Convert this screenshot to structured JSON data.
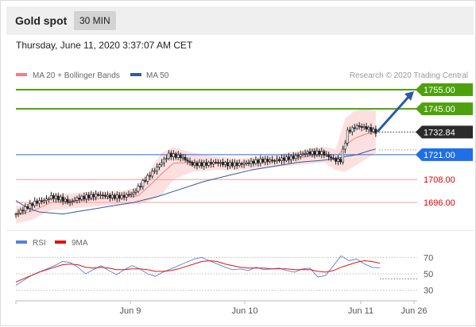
{
  "header": {
    "title": "Gold spot",
    "timeframe": "30 MIN"
  },
  "date": "Thursday, June 11, 2020 3:37:07 AM CET",
  "credit": "Research © 2020 Trading Central",
  "legend": [
    {
      "label": "MA 20 + Bollinger Bands",
      "color": "#f08080"
    },
    {
      "label": "MA 50",
      "color": "#2f5b9e"
    }
  ],
  "rsi_legend": [
    {
      "label": "RSI",
      "color": "#5a7fd6"
    },
    {
      "label": "9MA",
      "color": "#e01010"
    }
  ],
  "colors": {
    "candle": "#222222",
    "target": "#4ea10d",
    "pivot": "#1f6fe6",
    "support": "#ff9a9a",
    "support_text": "#e00000",
    "arrow": "#2a5aa8",
    "price": "#2b2b2b"
  },
  "chart_data": [
    {
      "type": "candlestick",
      "ylim": [
        1684,
        1760
      ],
      "x_ticks": [
        "Jun 9",
        "Jun 10",
        "Jun 11",
        "Jun 26"
      ],
      "levels": [
        {
          "value": 1755.0,
          "label": "1755.00",
          "kind": "target"
        },
        {
          "value": 1745.0,
          "label": "1745.00",
          "kind": "target"
        },
        {
          "value": 1732.84,
          "label": "1732.84",
          "kind": "price"
        },
        {
          "value": 1721.0,
          "label": "1721.00",
          "kind": "pivot"
        },
        {
          "value": 1708.0,
          "label": "1708.00",
          "kind": "support"
        },
        {
          "value": 1696.0,
          "label": "1696.00",
          "kind": "support"
        }
      ],
      "close_path": [
        [
          0,
          1690
        ],
        [
          8,
          1693
        ],
        [
          16,
          1696
        ],
        [
          24,
          1697
        ],
        [
          30,
          1699
        ],
        [
          38,
          1698
        ],
        [
          46,
          1696
        ],
        [
          52,
          1698
        ],
        [
          60,
          1699
        ],
        [
          70,
          1700
        ],
        [
          82,
          1699
        ],
        [
          90,
          1699
        ],
        [
          100,
          1701
        ],
        [
          110,
          1708
        ],
        [
          118,
          1713
        ],
        [
          124,
          1717
        ],
        [
          130,
          1721
        ],
        [
          140,
          1720
        ],
        [
          150,
          1716
        ],
        [
          160,
          1716
        ],
        [
          170,
          1717
        ],
        [
          180,
          1716
        ],
        [
          190,
          1716
        ],
        [
          200,
          1717
        ],
        [
          210,
          1718
        ],
        [
          220,
          1718
        ],
        [
          230,
          1719
        ],
        [
          238,
          1720
        ],
        [
          246,
          1722
        ],
        [
          256,
          1722
        ],
        [
          260,
          1722
        ],
        [
          266,
          1720
        ],
        [
          272,
          1718
        ],
        [
          276,
          1718
        ],
        [
          282,
          1733
        ],
        [
          290,
          1736
        ],
        [
          298,
          1735
        ],
        [
          306,
          1733
        ]
      ],
      "ma50_path": [
        [
          0,
          1697
        ],
        [
          10,
          1693
        ],
        [
          20,
          1691
        ],
        [
          40,
          1690
        ],
        [
          60,
          1692
        ],
        [
          80,
          1694
        ],
        [
          100,
          1696
        ],
        [
          120,
          1699
        ],
        [
          140,
          1703
        ],
        [
          160,
          1707
        ],
        [
          180,
          1710
        ],
        [
          200,
          1713
        ],
        [
          220,
          1715
        ],
        [
          240,
          1717
        ],
        [
          260,
          1718
        ],
        [
          272,
          1719
        ],
        [
          280,
          1720
        ],
        [
          290,
          1721
        ],
        [
          300,
          1723
        ],
        [
          306,
          1724
        ]
      ],
      "bb_upper_path": [
        [
          0,
          1694
        ],
        [
          14,
          1696
        ],
        [
          30,
          1700
        ],
        [
          50,
          1701
        ],
        [
          70,
          1702
        ],
        [
          90,
          1702
        ],
        [
          104,
          1704
        ],
        [
          114,
          1713
        ],
        [
          124,
          1722
        ],
        [
          134,
          1725
        ],
        [
          150,
          1722
        ],
        [
          170,
          1720
        ],
        [
          190,
          1719
        ],
        [
          210,
          1720
        ],
        [
          230,
          1722
        ],
        [
          248,
          1724
        ],
        [
          262,
          1725
        ],
        [
          272,
          1724
        ],
        [
          280,
          1740
        ],
        [
          288,
          1744
        ],
        [
          296,
          1745
        ],
        [
          306,
          1744
        ]
      ],
      "bb_lower_path": [
        [
          0,
          1685
        ],
        [
          14,
          1687
        ],
        [
          30,
          1692
        ],
        [
          50,
          1693
        ],
        [
          70,
          1694
        ],
        [
          90,
          1695
        ],
        [
          104,
          1695
        ],
        [
          114,
          1697
        ],
        [
          124,
          1700
        ],
        [
          134,
          1708
        ],
        [
          150,
          1712
        ],
        [
          170,
          1713
        ],
        [
          190,
          1713
        ],
        [
          210,
          1714
        ],
        [
          230,
          1715
        ],
        [
          248,
          1716
        ],
        [
          262,
          1717
        ],
        [
          272,
          1713
        ],
        [
          280,
          1712
        ],
        [
          288,
          1715
        ],
        [
          296,
          1718
        ],
        [
          306,
          1722
        ]
      ]
    },
    {
      "type": "line",
      "title": "RSI",
      "ylim": [
        20,
        80
      ],
      "y_ticks": [
        70,
        50,
        30
      ],
      "series": [
        {
          "name": "RSI",
          "values": [
            36,
            42,
            48,
            52,
            56,
            60,
            65,
            64,
            58,
            50,
            55,
            60,
            54,
            49,
            55,
            60,
            56,
            50,
            47,
            52,
            56,
            60,
            64,
            68,
            70,
            66,
            62,
            58,
            55,
            56,
            54,
            58,
            55,
            56,
            57,
            54,
            52,
            56,
            57,
            46,
            48,
            60,
            72,
            66,
            68,
            62,
            58,
            57
          ]
        },
        {
          "name": "9MA",
          "values": [
            40,
            44,
            48,
            52,
            55,
            58,
            61,
            62,
            61,
            58,
            57,
            58,
            57,
            55,
            55,
            56,
            56,
            55,
            53,
            53,
            54,
            56,
            59,
            62,
            65,
            66,
            65,
            62,
            60,
            58,
            57,
            57,
            57,
            56,
            56,
            56,
            55,
            55,
            55,
            53,
            52,
            54,
            58,
            61,
            64,
            66,
            65,
            63
          ]
        }
      ]
    }
  ]
}
